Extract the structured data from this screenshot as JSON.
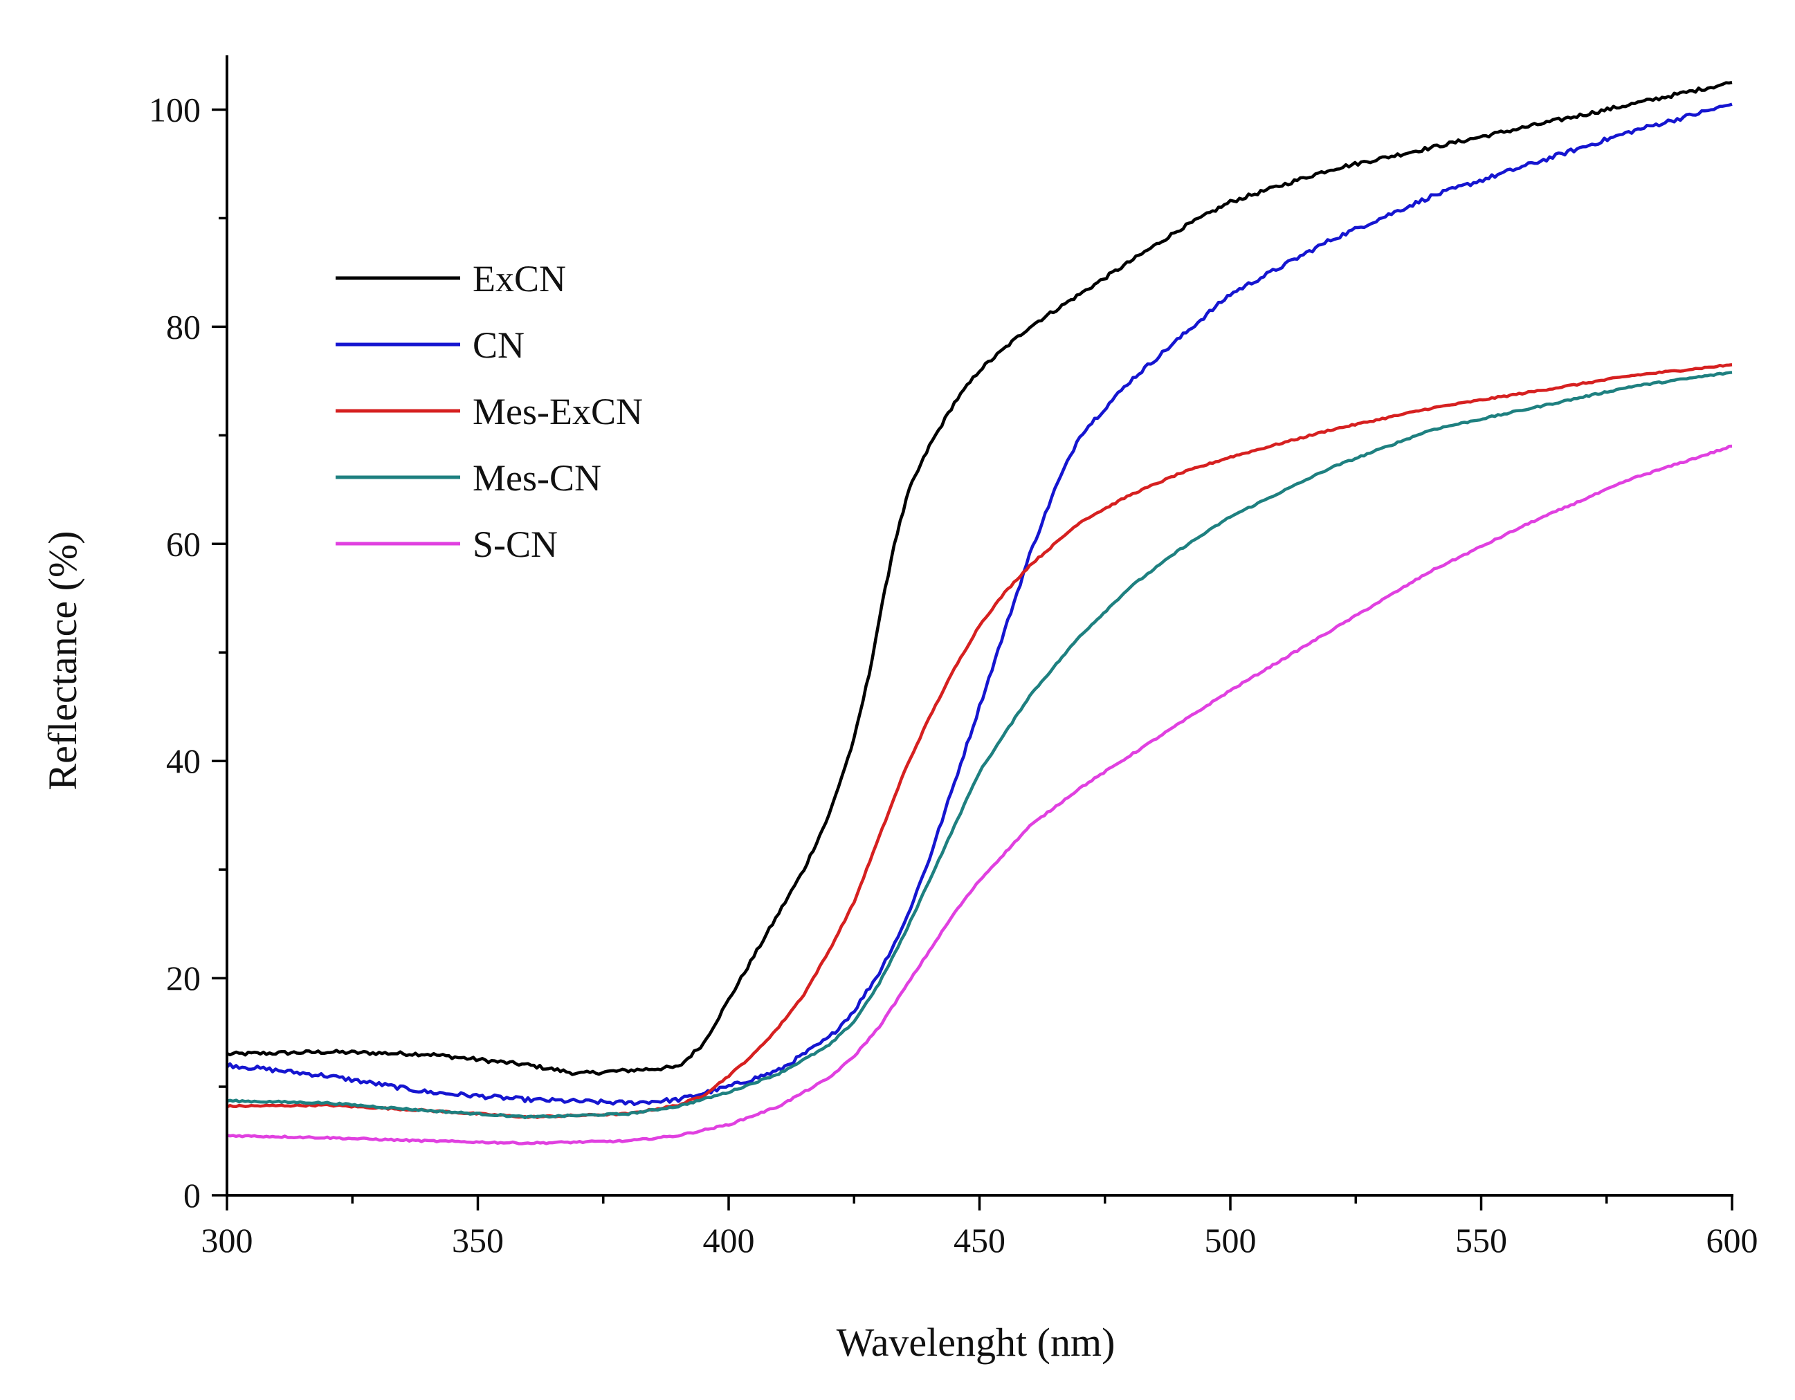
{
  "chart_data": {
    "type": "line",
    "title": "",
    "xlabel": "Wavelenght (nm)",
    "ylabel": "Reflectance (%)",
    "xlim": [
      300,
      600
    ],
    "ylim": [
      0,
      105
    ],
    "xticks": [
      300,
      350,
      400,
      450,
      500,
      550,
      600
    ],
    "xtick_labels": [
      "300",
      "350",
      "400",
      "450",
      "500",
      "550",
      "600"
    ],
    "yticks": [
      0,
      20,
      40,
      60,
      80,
      100
    ],
    "ytick_labels": [
      "0",
      "20",
      "40",
      "60",
      "80",
      "100"
    ],
    "grid": false,
    "legend_position": "top-left",
    "series": [
      {
        "name": "ExCN",
        "color": "#000000",
        "x": [
          300,
          320,
          340,
          360,
          370,
          380,
          390,
          395,
          400,
          405,
          410,
          415,
          420,
          425,
          428,
          430,
          433,
          436,
          440,
          445,
          450,
          460,
          470,
          480,
          490,
          500,
          520,
          540,
          560,
          580,
          600
        ],
        "y": [
          13,
          13.2,
          13,
          12,
          11.2,
          11.5,
          11.8,
          14,
          18,
          22,
          26,
          30,
          35,
          42,
          48,
          53,
          60,
          65,
          69,
          73,
          76,
          80,
          83,
          86,
          89,
          91.5,
          94.5,
          96.5,
          98.5,
          100.5,
          102.5
        ]
      },
      {
        "name": "CN",
        "color": "#1515d0",
        "x": [
          300,
          320,
          340,
          360,
          380,
          390,
          400,
          410,
          420,
          425,
          430,
          435,
          440,
          445,
          450,
          455,
          460,
          465,
          470,
          480,
          490,
          500,
          520,
          540,
          560,
          580,
          600
        ],
        "y": [
          12,
          11,
          9.5,
          8.8,
          8.5,
          8.8,
          10,
          11.5,
          14.5,
          17,
          20.5,
          25,
          31,
          38,
          45,
          52,
          59,
          65,
          70,
          75,
          79,
          83,
          88,
          92,
          95,
          98,
          100.5
        ]
      },
      {
        "name": "Mes-ExCN",
        "color": "#d62020",
        "x": [
          300,
          320,
          340,
          360,
          380,
          390,
          395,
          400,
          405,
          410,
          415,
          420,
          425,
          430,
          435,
          440,
          445,
          450,
          455,
          460,
          470,
          480,
          490,
          500,
          520,
          540,
          560,
          580,
          600
        ],
        "y": [
          8.2,
          8.3,
          7.8,
          7.2,
          7.5,
          8.3,
          9.2,
          11,
          13,
          15.5,
          18.5,
          22.5,
          27,
          33,
          39,
          44,
          48.5,
          52.5,
          55.5,
          58,
          62,
          64.5,
          66.5,
          68,
          70.5,
          72.5,
          74,
          75.5,
          76.5
        ]
      },
      {
        "name": "Mes-CN",
        "color": "#1e8080",
        "x": [
          300,
          320,
          340,
          360,
          380,
          390,
          400,
          410,
          420,
          425,
          430,
          435,
          440,
          445,
          450,
          460,
          470,
          480,
          490,
          500,
          520,
          540,
          560,
          580,
          600
        ],
        "y": [
          8.7,
          8.5,
          7.8,
          7.2,
          7.5,
          8.2,
          9.5,
          11.2,
          13.8,
          16,
          19.5,
          24,
          29,
          34,
          39,
          46,
          51.5,
          56,
          59.5,
          62.5,
          67,
          70.5,
          72.5,
          74.5,
          75.8
        ]
      },
      {
        "name": "S-CN",
        "color": "#e040e0",
        "x": [
          300,
          320,
          340,
          360,
          380,
          390,
          400,
          410,
          420,
          425,
          430,
          435,
          440,
          445,
          450,
          460,
          470,
          480,
          490,
          500,
          520,
          540,
          560,
          580,
          600
        ],
        "y": [
          5.5,
          5.3,
          5,
          4.8,
          5,
          5.5,
          6.5,
          8.2,
          10.8,
          12.8,
          15.5,
          19,
          22.5,
          26,
          29,
          34,
          37.5,
          40.5,
          43.5,
          46.5,
          52,
          57.5,
          62,
          66,
          69
        ]
      }
    ]
  }
}
